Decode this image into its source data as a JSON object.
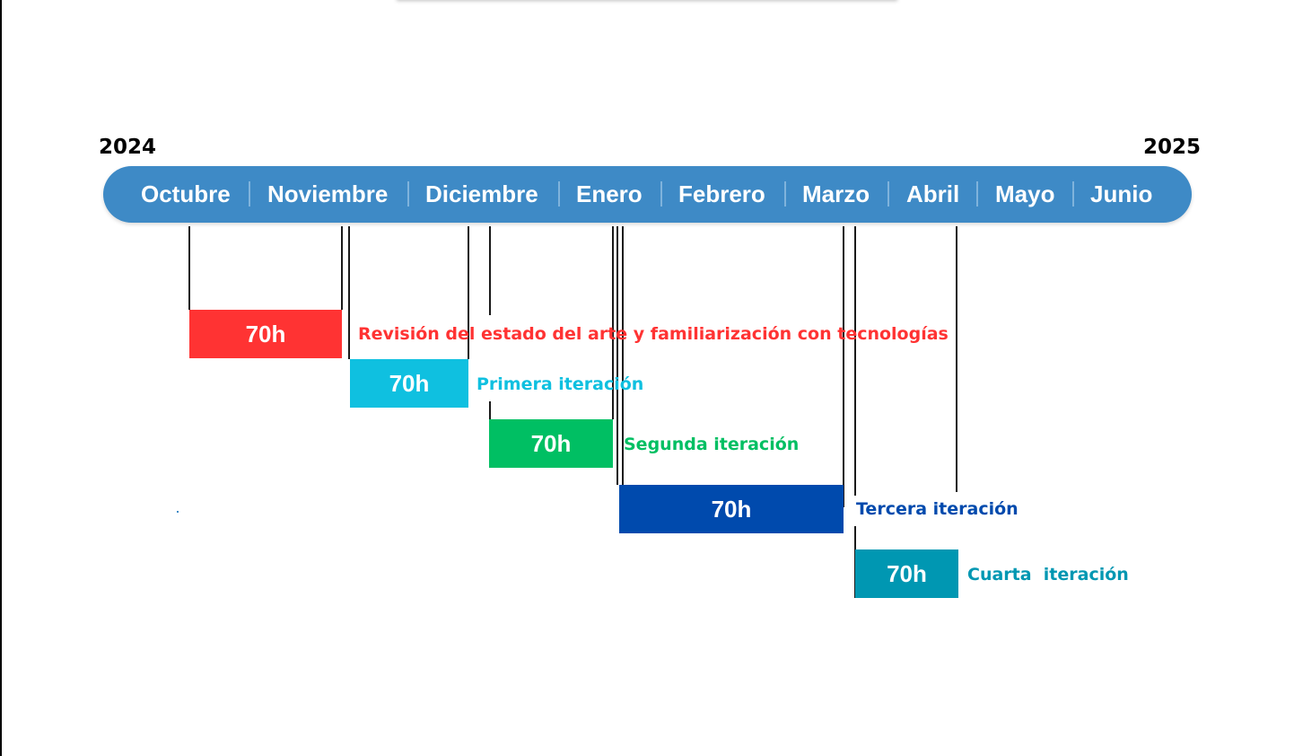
{
  "years": {
    "start": "2024",
    "end": "2025"
  },
  "months": [
    "Octubre",
    "Noviembre",
    "Diciembre",
    "Enero",
    "Febrero",
    "Marzo",
    "Abril",
    "Mayo",
    "Junio"
  ],
  "tasks": [
    {
      "hours": "70h",
      "label": "Revisión del estado del arte y familiarización con tecnologías",
      "color": "#ff3333"
    },
    {
      "hours": "70h",
      "label": "Primera iteración",
      "color": "#0fc0e0"
    },
    {
      "hours": "70h",
      "label": "Segunda iteración",
      "color": "#00bf63"
    },
    {
      "hours": "70h",
      "label": "Tercera iteración",
      "color": "#004aad"
    },
    {
      "hours": "70h",
      "label": "Cuarta  iteración",
      "color": "#0097b2"
    }
  ],
  "colors": {
    "timeline_bar": "#3e8ac6",
    "month_text": "#ffffff",
    "separator": "#7fb3dc"
  }
}
